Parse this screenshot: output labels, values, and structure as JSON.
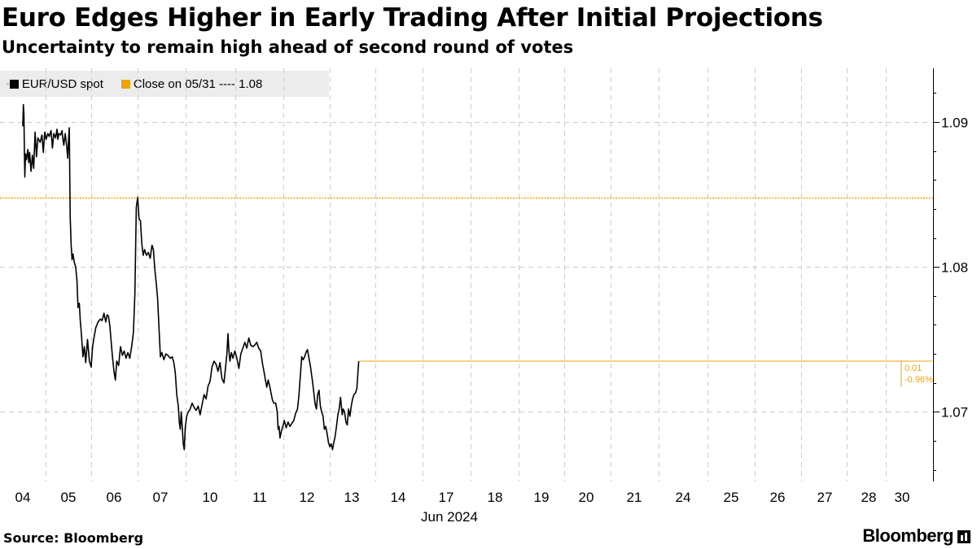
{
  "title": "Euro Edges Higher in Early Trading After Initial Projections",
  "subtitle": "Uncertainty to remain high ahead of second round of votes",
  "legend": {
    "series_label": "EUR/USD spot",
    "close_label": "Close on 05/31 ---- 1.08"
  },
  "colors": {
    "line": "#000000",
    "reference": "#f0a30a",
    "grid": "#cccccc"
  },
  "chart_data": {
    "type": "line",
    "x_tick_labels": [
      "04",
      "05",
      "06",
      "07",
      "10",
      "11",
      "12",
      "13",
      "14",
      "17",
      "18",
      "19",
      "20",
      "21",
      "24",
      "25",
      "26",
      "27",
      "28",
      "30"
    ],
    "x_sublabel": "Jun 2024",
    "y_ticks": [
      1.07,
      1.08,
      1.09
    ],
    "y_tick_labels": [
      "1.07",
      "1.08",
      "1.09"
    ],
    "ylim": [
      1.0652,
      1.0937
    ],
    "reference_line": {
      "value": 1.0848
    },
    "end_annotation": {
      "change": "0.01",
      "pct": "-0.96%"
    },
    "series": [
      {
        "values": [
          [
            0.0,
            1.0897
          ],
          [
            0.012,
            1.0912
          ],
          [
            0.025,
            1.0905
          ],
          [
            0.035,
            1.0878
          ],
          [
            0.045,
            1.0862
          ],
          [
            0.06,
            1.0878
          ],
          [
            0.08,
            1.0874
          ],
          [
            0.11,
            1.0881
          ],
          [
            0.13,
            1.0872
          ],
          [
            0.15,
            1.0879
          ],
          [
            0.18,
            1.0866
          ],
          [
            0.21,
            1.0877
          ],
          [
            0.24,
            1.0868
          ],
          [
            0.27,
            1.0893
          ],
          [
            0.3,
            1.0876
          ],
          [
            0.33,
            1.0889
          ],
          [
            0.38,
            1.0886
          ],
          [
            0.42,
            1.0891
          ],
          [
            0.45,
            1.0879
          ],
          [
            0.48,
            1.0893
          ],
          [
            0.51,
            1.0888
          ],
          [
            0.55,
            1.0892
          ],
          [
            0.58,
            1.089
          ],
          [
            0.62,
            1.0894
          ],
          [
            0.65,
            1.0882
          ],
          [
            0.68,
            1.0892
          ],
          [
            0.72,
            1.0889
          ],
          [
            0.75,
            1.0895
          ],
          [
            0.77,
            1.0888
          ],
          [
            0.79,
            1.0892
          ],
          [
            0.83,
            1.0891
          ],
          [
            0.86,
            1.0894
          ],
          [
            0.88,
            1.0888
          ],
          [
            0.9,
            1.0884
          ],
          [
            0.93,
            1.0892
          ],
          [
            0.96,
            1.0884
          ],
          [
            0.985,
            1.0875
          ],
          [
            1.005,
            1.0889
          ],
          [
            1.02,
            1.0896
          ],
          [
            1.04,
            1.0835
          ],
          [
            1.06,
            1.0815
          ],
          [
            1.08,
            1.0805
          ],
          [
            1.1,
            1.0809
          ],
          [
            1.13,
            1.0803
          ],
          [
            1.16,
            1.08
          ],
          [
            1.19,
            1.079
          ],
          [
            1.21,
            1.0772
          ],
          [
            1.24,
            1.0775
          ],
          [
            1.26,
            1.0763
          ],
          [
            1.29,
            1.0752
          ],
          [
            1.32,
            1.0738
          ],
          [
            1.35,
            1.0745
          ],
          [
            1.38,
            1.0734
          ],
          [
            1.42,
            1.075
          ],
          [
            1.46,
            1.0735
          ],
          [
            1.5,
            1.0731
          ],
          [
            1.53,
            1.0745
          ],
          [
            1.56,
            1.0751
          ],
          [
            1.6,
            1.0758
          ],
          [
            1.65,
            1.0762
          ],
          [
            1.7,
            1.0764
          ],
          [
            1.74,
            1.0763
          ],
          [
            1.78,
            1.0768
          ],
          [
            1.82,
            1.0762
          ],
          [
            1.85,
            1.0767
          ],
          [
            1.88,
            1.0766
          ],
          [
            1.91,
            1.0759
          ],
          [
            1.94,
            1.0748
          ],
          [
            1.97,
            1.0737
          ],
          [
            2.0,
            1.0728
          ],
          [
            2.03,
            1.0722
          ],
          [
            2.06,
            1.0735
          ],
          [
            2.1,
            1.0732
          ],
          [
            2.14,
            1.0745
          ],
          [
            2.18,
            1.0739
          ],
          [
            2.22,
            1.0742
          ],
          [
            2.26,
            1.0737
          ],
          [
            2.3,
            1.0741
          ],
          [
            2.34,
            1.0737
          ],
          [
            2.38,
            1.0745
          ],
          [
            2.42,
            1.0755
          ],
          [
            2.45,
            1.0782
          ],
          [
            2.48,
            1.0841
          ],
          [
            2.51,
            1.0848
          ],
          [
            2.54,
            1.0833
          ],
          [
            2.57,
            1.0832
          ],
          [
            2.6,
            1.0816
          ],
          [
            2.63,
            1.0808
          ],
          [
            2.66,
            1.0812
          ],
          [
            2.7,
            1.0808
          ],
          [
            2.74,
            1.081
          ],
          [
            2.78,
            1.0806
          ],
          [
            2.82,
            1.0815
          ],
          [
            2.85,
            1.0812
          ],
          [
            2.88,
            1.0798
          ],
          [
            2.91,
            1.0789
          ],
          [
            2.94,
            1.0778
          ],
          [
            2.97,
            1.0758
          ],
          [
            3.0,
            1.0738
          ],
          [
            3.03,
            1.0741
          ],
          [
            3.07,
            1.0736
          ],
          [
            3.11,
            1.074
          ],
          [
            3.15,
            1.0739
          ],
          [
            3.2,
            1.0737
          ],
          [
            3.24,
            1.0738
          ],
          [
            3.27,
            1.0734
          ],
          [
            3.3,
            1.0727
          ],
          [
            3.33,
            1.0712
          ],
          [
            3.36,
            1.0704
          ],
          [
            3.38,
            1.0693
          ],
          [
            3.4,
            1.0688
          ],
          [
            3.42,
            1.07
          ],
          [
            3.44,
            1.069
          ],
          [
            3.46,
            1.0678
          ],
          [
            3.48,
            1.0674
          ],
          [
            3.5,
            1.0689
          ],
          [
            3.53,
            1.0697
          ],
          [
            3.56,
            1.07
          ],
          [
            3.6,
            1.0702
          ],
          [
            3.64,
            1.0706
          ],
          [
            3.68,
            1.0703
          ],
          [
            3.72,
            1.0701
          ],
          [
            3.76,
            1.0704
          ],
          [
            3.8,
            1.0698
          ],
          [
            3.84,
            1.0705
          ],
          [
            3.88,
            1.0712
          ],
          [
            3.92,
            1.0709
          ],
          [
            3.96,
            1.0718
          ],
          [
            4.0,
            1.0721
          ],
          [
            4.04,
            1.0731
          ],
          [
            4.08,
            1.0735
          ],
          [
            4.12,
            1.0733
          ],
          [
            4.16,
            1.0728
          ],
          [
            4.2,
            1.0734
          ],
          [
            4.24,
            1.0723
          ],
          [
            4.28,
            1.072
          ],
          [
            4.31,
            1.073
          ],
          [
            4.34,
            1.074
          ],
          [
            4.36,
            1.0754
          ],
          [
            4.38,
            1.0742
          ],
          [
            4.4,
            1.0735
          ],
          [
            4.43,
            1.0741
          ],
          [
            4.46,
            1.0737
          ],
          [
            4.5,
            1.0742
          ],
          [
            4.54,
            1.0737
          ],
          [
            4.58,
            1.073
          ],
          [
            4.62,
            1.074
          ],
          [
            4.66,
            1.0744
          ],
          [
            4.7,
            1.0748
          ],
          [
            4.74,
            1.0744
          ],
          [
            4.78,
            1.0751
          ],
          [
            4.82,
            1.0746
          ],
          [
            4.86,
            1.0745
          ],
          [
            4.9,
            1.0746
          ],
          [
            4.94,
            1.0748
          ],
          [
            4.98,
            1.0744
          ],
          [
            5.02,
            1.0742
          ],
          [
            5.06,
            1.0733
          ],
          [
            5.09,
            1.0728
          ],
          [
            5.12,
            1.0722
          ],
          [
            5.15,
            1.0717
          ],
          [
            5.18,
            1.0722
          ],
          [
            5.21,
            1.0718
          ],
          [
            5.24,
            1.0713
          ],
          [
            5.27,
            1.0708
          ],
          [
            5.3,
            1.0706
          ],
          [
            5.34,
            1.0706
          ],
          [
            5.37,
            1.07
          ],
          [
            5.39,
            1.0688
          ],
          [
            5.41,
            1.069
          ],
          [
            5.43,
            1.0682
          ],
          [
            5.46,
            1.0687
          ],
          [
            5.49,
            1.069
          ],
          [
            5.52,
            1.0694
          ],
          [
            5.56,
            1.0689
          ],
          [
            5.6,
            1.0693
          ],
          [
            5.64,
            1.069
          ],
          [
            5.68,
            1.0692
          ],
          [
            5.72,
            1.0694
          ],
          [
            5.76,
            1.0699
          ],
          [
            5.8,
            1.0702
          ],
          [
            5.83,
            1.0711
          ],
          [
            5.86,
            1.0725
          ],
          [
            5.89,
            1.0738
          ],
          [
            5.92,
            1.0736
          ],
          [
            5.95,
            1.0738
          ],
          [
            5.98,
            1.0741
          ],
          [
            6.01,
            1.0743
          ],
          [
            6.04,
            1.0738
          ],
          [
            6.08,
            1.0731
          ],
          [
            6.12,
            1.0722
          ],
          [
            6.15,
            1.0714
          ],
          [
            6.18,
            1.0706
          ],
          [
            6.21,
            1.0702
          ],
          [
            6.24,
            1.0712
          ],
          [
            6.27,
            1.0715
          ],
          [
            6.3,
            1.0704
          ],
          [
            6.33,
            1.07
          ],
          [
            6.36,
            1.0697
          ],
          [
            6.39,
            1.0688
          ],
          [
            6.42,
            1.069
          ],
          [
            6.45,
            1.0685
          ],
          [
            6.48,
            1.0679
          ],
          [
            6.51,
            1.0676
          ],
          [
            6.54,
            1.0678
          ],
          [
            6.57,
            1.0674
          ],
          [
            6.6,
            1.0679
          ],
          [
            6.63,
            1.0683
          ],
          [
            6.66,
            1.069
          ],
          [
            6.69,
            1.0698
          ],
          [
            6.72,
            1.0702
          ],
          [
            6.75,
            1.071
          ],
          [
            6.77,
            1.0704
          ],
          [
            6.79,
            1.0698
          ],
          [
            6.81,
            1.0702
          ],
          [
            6.84,
            1.07
          ],
          [
            6.87,
            1.0693
          ],
          [
            6.9,
            1.0691
          ],
          [
            6.93,
            1.0702
          ],
          [
            6.96,
            1.0697
          ],
          [
            6.99,
            1.0704
          ],
          [
            7.02,
            1.0709
          ],
          [
            7.05,
            1.0712
          ],
          [
            7.08,
            1.0713
          ],
          [
            7.11,
            1.0716
          ],
          [
            7.15,
            1.0735
          ]
        ]
      }
    ]
  }
}
